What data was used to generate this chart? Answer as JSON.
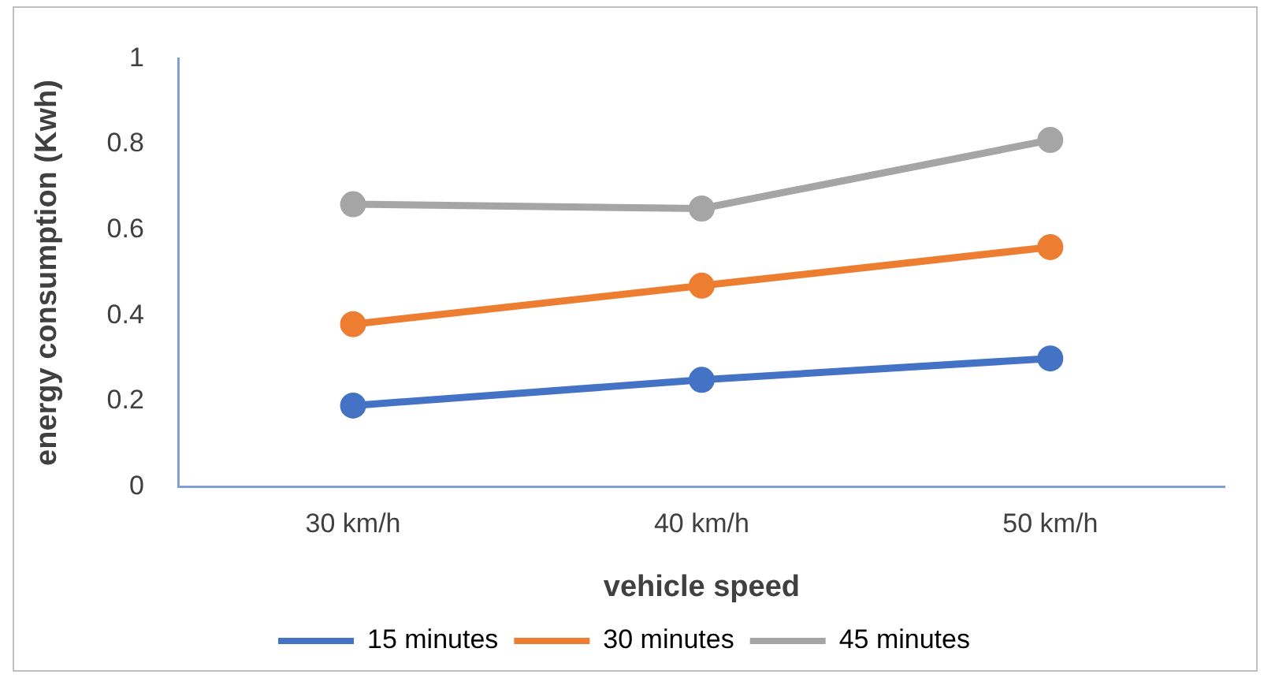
{
  "chart_data": {
    "type": "line",
    "xlabel": "vehicle speed",
    "ylabel": "energy consumption (Kwh)",
    "categories": [
      "30 km/h",
      "40 km/h",
      "50 km/h"
    ],
    "series": [
      {
        "name": "15 minutes",
        "color": "#4472c4",
        "values": [
          0.19,
          0.25,
          0.3
        ]
      },
      {
        "name": "30 minutes",
        "color": "#ed7d31",
        "values": [
          0.38,
          0.47,
          0.56
        ]
      },
      {
        "name": "45 minutes",
        "color": "#a5a5a5",
        "values": [
          0.66,
          0.65,
          0.81
        ]
      }
    ],
    "ylim": [
      0,
      1
    ],
    "yticks": [
      0,
      0.2,
      0.4,
      0.6,
      0.8,
      1
    ],
    "grid": false,
    "legend": "bottom",
    "marker": "circle",
    "line_style": "solid"
  }
}
